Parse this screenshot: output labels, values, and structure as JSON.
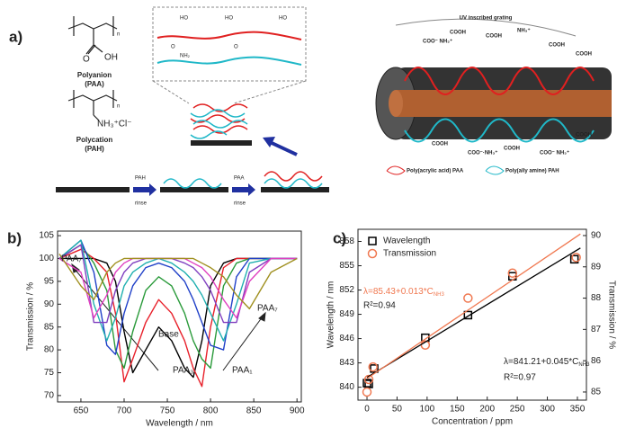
{
  "diagram": {
    "panel_label": "a)",
    "polyanion_name": "Polyanion",
    "polyanion_abbr": "(PAA)",
    "polycation_name": "Polycation",
    "polycation_abbr": "(PAH)",
    "repeat_index": "n",
    "paa_groups": [
      "O",
      "OH"
    ],
    "pah_group": "NH₃⁺Cl⁻",
    "inset_labels": [
      "HO",
      "O",
      "HO",
      "O",
      "HO",
      "NH₂"
    ],
    "steps": [
      {
        "name": "PAH",
        "action": "rinse"
      },
      {
        "name": "PAA",
        "action": "rinse"
      }
    ],
    "grating_title": "UV inscribed grating",
    "grating_labels": [
      "COO⁻ NH₃⁺",
      "COOH",
      "COOH",
      "NH₃⁺",
      "COOH",
      "COOH",
      "COOH",
      "COO⁻·NH₃⁺",
      "COOH",
      "COO⁻ NH₃⁺",
      "COOH"
    ],
    "legend": [
      "Poly(acrylic acid) PAA",
      "Poly(ally amine) PAH"
    ]
  },
  "chart_data": [
    {
      "type": "line",
      "panel_label": "b)",
      "x_label": "Wavelength / nm",
      "y_label": "Transmission / %",
      "x": [
        625,
        650,
        665,
        680,
        690,
        700,
        710,
        725,
        740,
        755,
        770,
        780,
        790,
        800,
        815,
        830,
        845,
        870,
        900
      ],
      "series": [
        {
          "color": "#000000",
          "values": [
            100,
            100,
            100,
            99,
            95,
            84,
            75,
            80,
            85,
            82,
            76,
            74,
            82,
            94,
            99,
            100,
            100,
            100,
            100
          ]
        },
        {
          "color": "#e8202a",
          "values": [
            100,
            102,
            100,
            97,
            88,
            73,
            78,
            86,
            91,
            88,
            82,
            76,
            72,
            85,
            98,
            100,
            100,
            100,
            100
          ]
        },
        {
          "color": "#2a9a3a",
          "values": [
            100,
            103,
            99,
            93,
            80,
            76,
            84,
            93,
            96,
            94,
            88,
            82,
            78,
            76,
            94,
            99,
            100,
            100,
            100
          ]
        },
        {
          "color": "#2040c8",
          "values": [
            100,
            104,
            97,
            81,
            79,
            88,
            94,
            98,
            99,
            98,
            95,
            91,
            86,
            81,
            80,
            96,
            100,
            100,
            100
          ]
        },
        {
          "color": "#20b0b0",
          "values": [
            100,
            104,
            90,
            82,
            87,
            94,
            97,
            99,
            100,
            99,
            97,
            95,
            92,
            88,
            82,
            90,
            99,
            100,
            100
          ]
        },
        {
          "color": "#8040c0",
          "values": [
            100,
            103,
            86,
            86,
            93,
            97,
            99,
            100,
            100,
            100,
            99,
            98,
            96,
            93,
            86,
            86,
            97,
            100,
            100
          ]
        },
        {
          "color": "#e040c0",
          "values": [
            100,
            97,
            87,
            92,
            97,
            99,
            100,
            100,
            100,
            100,
            100,
            99,
            98,
            96,
            91,
            87,
            95,
            100,
            100
          ]
        },
        {
          "color": "#a09020",
          "values": [
            101,
            94,
            91,
            97,
            99,
            100,
            100,
            100,
            100,
            100,
            100,
            100,
            99,
            98,
            96,
            92,
            89,
            97,
            100
          ]
        }
      ],
      "annotations": [
        "PAA₇",
        "PAA₇",
        "PAA₃",
        "PAA₁",
        "Base"
      ],
      "xlim": [
        623,
        905
      ],
      "xticks": [
        650,
        700,
        750,
        800,
        850,
        900
      ],
      "ylim": [
        68.6,
        106
      ],
      "yticks": [
        70,
        75,
        80,
        85,
        90,
        95,
        100,
        105
      ]
    },
    {
      "type": "scatter",
      "panel_label": "c)",
      "x_label": "Concentration / ppm",
      "y_label": "Wavelength / nm",
      "y2_label": "Transmission / %",
      "series": [
        {
          "name": "Wavelength",
          "marker": "square",
          "color": "#000000",
          "x": [
            0,
            3,
            12,
            97,
            168,
            242,
            345
          ],
          "values": [
            840.5,
            840.4,
            842.3,
            846.1,
            848.9,
            853.7,
            855.8
          ]
        },
        {
          "name": "Transmission",
          "marker": "circle",
          "color": "#f07850",
          "axis": "y2",
          "x": [
            0,
            3,
            10,
            97,
            168,
            242,
            348
          ],
          "values": [
            85.0,
            85.4,
            85.8,
            86.5,
            88.0,
            88.8,
            89.3
          ]
        },
        {
          "marker": "line",
          "color": "#000000",
          "x": [
            0,
            355
          ],
          "values": [
            841.21,
            857.19
          ]
        },
        {
          "marker": "line",
          "color": "#f07850",
          "axis": "y2",
          "x": [
            0,
            355
          ],
          "values": [
            85.43,
            90.05
          ]
        }
      ],
      "annotations": [
        {
          "text": "λ=85.43+0.013*C",
          "sub": "NH3"
        },
        "R²=0.94",
        {
          "text": "λ=841.21+0.045*C",
          "sub": "NH3"
        },
        "R²=0.97"
      ],
      "xlim": [
        -15,
        365
      ],
      "xticks": [
        0,
        50,
        100,
        150,
        200,
        250,
        300,
        350
      ],
      "ylim": [
        838.4,
        859.5
      ],
      "yticks": [
        840,
        843,
        846,
        849,
        852,
        855,
        858
      ],
      "y2lim": [
        84.74,
        90.2
      ],
      "y2ticks": [
        85,
        86,
        87,
        88,
        89,
        90
      ]
    }
  ]
}
